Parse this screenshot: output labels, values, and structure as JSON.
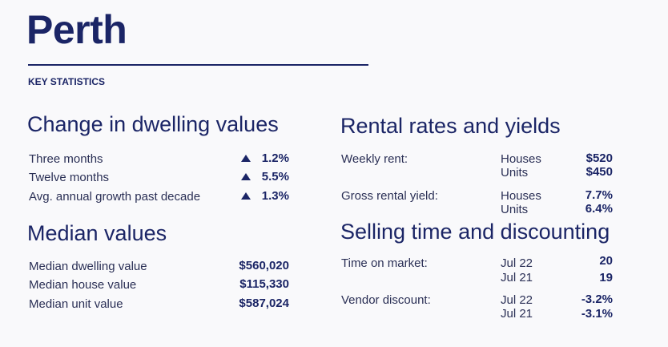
{
  "title": "Perth",
  "subtitle": "KEY STATISTICS",
  "change": {
    "heading": "Change in dwelling values",
    "rows": [
      {
        "label": "Three months",
        "value": "1.2%",
        "icon": "triangle-up-icon"
      },
      {
        "label": "Twelve months",
        "value": "5.5%",
        "icon": "triangle-up-icon"
      },
      {
        "label": "Avg. annual growth past decade",
        "value": "1.3%",
        "icon": "triangle-up-icon"
      }
    ]
  },
  "median": {
    "heading": "Median values",
    "rows": [
      {
        "label": "Median dwelling value",
        "value": "$560,020"
      },
      {
        "label": "Median house value",
        "value": "$115,330"
      },
      {
        "label": "Median unit value",
        "value": "$587,024"
      }
    ]
  },
  "rental": {
    "heading": "Rental rates and yields",
    "weekly": {
      "label": "Weekly rent:",
      "rows": [
        {
          "sub": "Houses",
          "value": "$520"
        },
        {
          "sub": "Units",
          "value": "$450"
        }
      ]
    },
    "yield": {
      "label": "Gross rental yield:",
      "rows": [
        {
          "sub": "Houses",
          "value": "7.7%"
        },
        {
          "sub": "Units",
          "value": "6.4%"
        }
      ]
    }
  },
  "selling": {
    "heading": "Selling time and discounting",
    "market": {
      "label": "Time on market:",
      "rows": [
        {
          "sub": "Jul 22",
          "value": "20"
        },
        {
          "sub": "Jul 21",
          "value": "19"
        }
      ]
    },
    "discount": {
      "label": "Vendor discount:",
      "rows": [
        {
          "sub": "Jul 22",
          "value": "-3.2%"
        },
        {
          "sub": "Jul 21",
          "value": "-3.1%"
        }
      ]
    }
  },
  "colors": {
    "navy": "#1b2566"
  }
}
